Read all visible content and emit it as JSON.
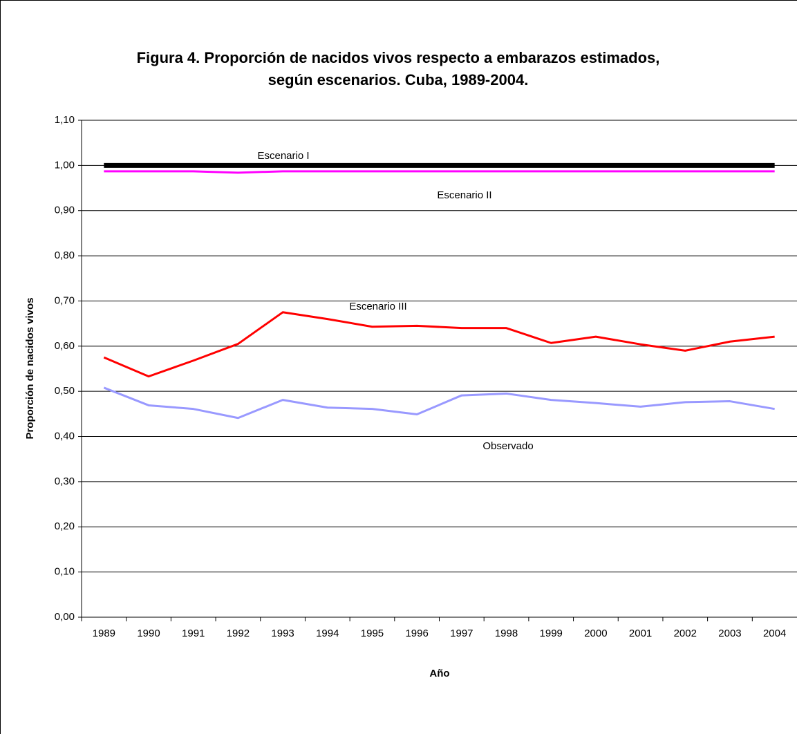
{
  "chart_data": {
    "type": "line",
    "title": [
      "Figura 4. Proporción de nacidos vivos respecto a embarazos estimados,",
      "según escenarios. Cuba, 1989-2004."
    ],
    "x_label": "Año",
    "y_label": "Proporción de nacidos vivos",
    "categories": [
      "1989",
      "1990",
      "1991",
      "1992",
      "1993",
      "1994",
      "1995",
      "1996",
      "1997",
      "1998",
      "1999",
      "2000",
      "2001",
      "2002",
      "2003",
      "2004"
    ],
    "series": [
      {
        "name": "Escenario I",
        "color": "#000000",
        "values": [
          1.0,
          1.0,
          1.0,
          1.0,
          1.0,
          1.0,
          1.0,
          1.0,
          1.0,
          1.0,
          1.0,
          1.0,
          1.0,
          1.0,
          1.0,
          1.0
        ]
      },
      {
        "name": "Escenario II",
        "color": "#ff00ff",
        "values": [
          0.987,
          0.987,
          0.987,
          0.984,
          0.987,
          0.987,
          0.987,
          0.987,
          0.987,
          0.987,
          0.987,
          0.987,
          0.987,
          0.987,
          0.987,
          0.987
        ]
      },
      {
        "name": "Escenario III",
        "color": "#ff0000",
        "values": [
          0.575,
          0.533,
          0.568,
          0.605,
          0.675,
          0.66,
          0.643,
          0.645,
          0.64,
          0.64,
          0.607,
          0.621,
          0.604,
          0.59,
          0.61,
          0.621
        ]
      },
      {
        "name": "Observado",
        "color": "#9999ff",
        "values": [
          0.508,
          0.469,
          0.461,
          0.441,
          0.481,
          0.464,
          0.461,
          0.449,
          0.491,
          0.495,
          0.481,
          0.474,
          0.466,
          0.476,
          0.478,
          0.461
        ]
      }
    ],
    "ylim": [
      0,
      1.1
    ],
    "yticks": [
      {
        "value": 0,
        "label": "0,00"
      },
      {
        "value": 0.1,
        "label": "0,10"
      },
      {
        "value": 0.2,
        "label": "0,20"
      },
      {
        "value": 0.3,
        "label": "0,30"
      },
      {
        "value": 0.4,
        "label": "0,40"
      },
      {
        "value": 0.5,
        "label": "0,50"
      },
      {
        "value": 0.6,
        "label": "0,60"
      },
      {
        "value": 0.7,
        "label": "0,70"
      },
      {
        "value": 0.8,
        "label": "0,80"
      },
      {
        "value": 0.9,
        "label": "0,90"
      },
      {
        "value": 1.0,
        "label": "1,00"
      },
      {
        "value": 1.1,
        "label": "1,10"
      }
    ],
    "grid": true
  }
}
